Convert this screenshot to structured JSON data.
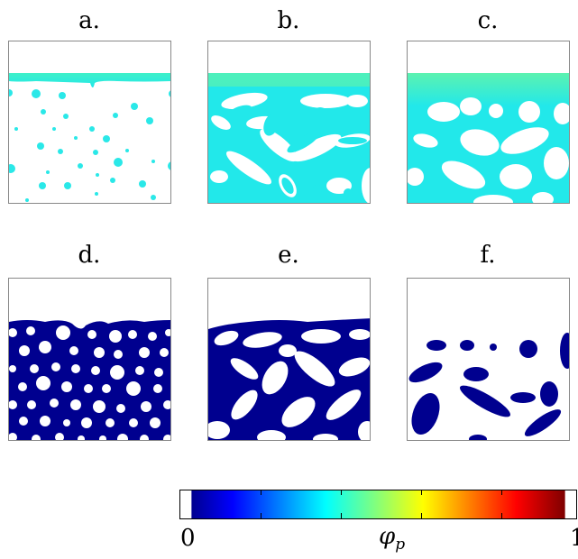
{
  "panels": [
    {
      "label": "a.",
      "color": "#2af0e6"
    },
    {
      "label": "b.",
      "color": "#2af0e6"
    },
    {
      "label": "c.",
      "color": "#2af0e6"
    },
    {
      "label": "d.",
      "color": "#00008f"
    },
    {
      "label": "e.",
      "color": "#00008f"
    },
    {
      "label": "f.",
      "color": "#00008f"
    }
  ],
  "colorbar": {
    "min_label": "0",
    "max_label": "1",
    "variable": "φ",
    "variable_sub": "p",
    "colormap": "jet"
  }
}
